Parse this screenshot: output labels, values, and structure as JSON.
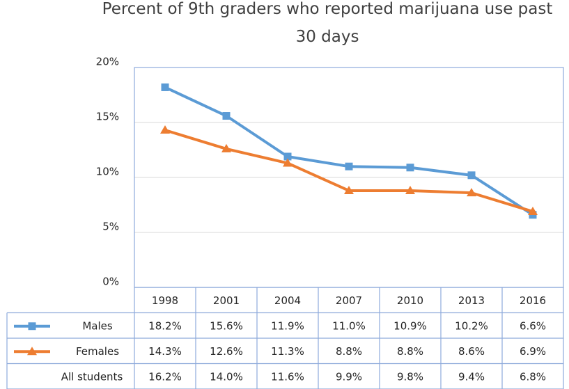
{
  "chart_data": {
    "type": "line",
    "title": "Percent of 9th graders who reported marijuana use past 30 days",
    "categories": [
      "1998",
      "2001",
      "2004",
      "2007",
      "2010",
      "2013",
      "2016"
    ],
    "ylim": [
      0,
      20
    ],
    "yticks": [
      {
        "value": 0,
        "label": "0%"
      },
      {
        "value": 5,
        "label": "5%"
      },
      {
        "value": 10,
        "label": "10%"
      },
      {
        "value": 15,
        "label": "15%"
      },
      {
        "value": 20,
        "label": "20%"
      }
    ],
    "grid": true,
    "data_table": true,
    "series": [
      {
        "name": "Males",
        "color": "#5b9bd5",
        "marker": "square",
        "values": [
          18.2,
          15.6,
          11.9,
          11.0,
          10.9,
          10.2,
          6.6
        ],
        "value_labels": [
          "18.2%",
          "15.6%",
          "11.9%",
          "11.0%",
          "10.9%",
          "10.2%",
          "6.6%"
        ]
      },
      {
        "name": "Females",
        "color": "#ed7d31",
        "marker": "triangle",
        "values": [
          14.3,
          12.6,
          11.3,
          8.8,
          8.8,
          8.6,
          6.9
        ],
        "value_labels": [
          "14.3%",
          "12.6%",
          "11.3%",
          "8.8%",
          "8.8%",
          "8.6%",
          "6.9%"
        ]
      },
      {
        "name": "All students",
        "values": [
          16.2,
          14.0,
          11.6,
          9.9,
          9.8,
          9.4,
          6.8
        ],
        "value_labels": [
          "16.2%",
          "14.0%",
          "11.6%",
          "9.9%",
          "9.8%",
          "9.4%",
          "6.8%"
        ]
      }
    ]
  }
}
